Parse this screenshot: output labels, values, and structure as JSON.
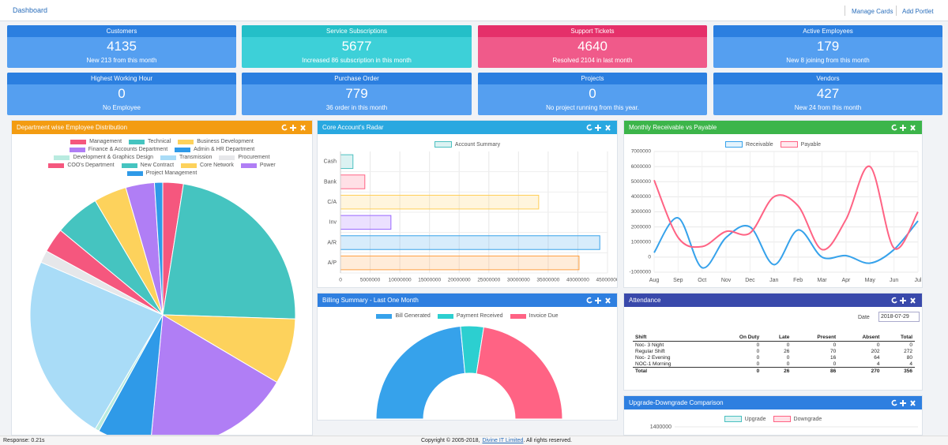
{
  "header": {
    "title": "Dashboard",
    "links": [
      "Manage Cards",
      "Add Portlet"
    ]
  },
  "cards": [
    {
      "title": "Customers",
      "value": 4135,
      "note": "New 213 from this month",
      "color": "#2b7fe0",
      "body_color": "#559ff0"
    },
    {
      "title": "Service Subscriptions",
      "value": 5677,
      "note": "Increased 86 subscription in this month",
      "color": "#24bfc8",
      "body_color": "#3dd0d8"
    },
    {
      "title": "Support Tickets",
      "value": 4640,
      "note": "Resolved 2104 in last month",
      "color": "#e5306a",
      "body_color": "#f05a8a"
    },
    {
      "title": "Active Employees",
      "value": 179,
      "note": "New 8 joining from this month",
      "color": "#2b7fe0",
      "body_color": "#559ff0"
    },
    {
      "title": "Highest Working Hour",
      "value": 0,
      "note": "No Employee",
      "color": "#2b7fe0",
      "body_color": "#559ff0"
    },
    {
      "title": "Purchase Order",
      "value": 779,
      "note": "36 order in this month",
      "color": "#2b7fe0",
      "body_color": "#559ff0"
    },
    {
      "title": "Projects",
      "value": 0,
      "note": "No project running from this year.",
      "color": "#2b7fe0",
      "body_color": "#559ff0"
    },
    {
      "title": "Vendors",
      "value": 427,
      "note": "New 24 from this month",
      "color": "#2b7fe0",
      "body_color": "#559ff0"
    }
  ],
  "panels": {
    "department": {
      "title": "Department wise Employee Distribution",
      "color": "#f39c12",
      "chart": {
        "type": "pie",
        "categories": [
          "Management",
          "Technical",
          "Business Development",
          "Finance & Accounts Department",
          "Admin & HR Department",
          "Development & Graphics Design",
          "Transmission",
          "Procurement",
          "COO's Department",
          "New Contract",
          "Core Network",
          "Power",
          "Project Management"
        ],
        "colors": [
          "#f5577e",
          "#45c4c0",
          "#fdd25c",
          "#b07ef5",
          "#2f9ae8",
          "#b9ebe0",
          "#a9dcf7",
          "#e6e7ea",
          "#f5577e",
          "#45c4c0",
          "#fdd25c",
          "#b07ef5",
          "#2f9ae8"
        ],
        "values": [
          2.5,
          23,
          8,
          18,
          6.5,
          0.5,
          23,
          1.5,
          3,
          5.5,
          4,
          3.5,
          1
        ]
      }
    },
    "radar": {
      "title": "Core Account's Radar",
      "color": "#29a8e0",
      "chart": {
        "type": "hbar",
        "categories": [
          "Cash",
          "Bank",
          "C/A",
          "Inv",
          "A/R",
          "A/P"
        ],
        "colors": [
          "#4bc0c0",
          "#ff6384",
          "#ffce56",
          "#9966ff",
          "#36a2eb",
          "#ff9f40"
        ],
        "series": [
          {
            "name": "Account Summary",
            "values": [
              2100000,
              4100000,
              33400000,
              8500000,
              43700000,
              40200000
            ]
          }
        ],
        "xlim": [
          0,
          45000000
        ],
        "xticks": [
          0,
          5000000,
          10000000,
          15000000,
          20000000,
          25000000,
          30000000,
          35000000,
          40000000,
          45000000
        ],
        "grid": true
      }
    },
    "monthly": {
      "title": "Monthly Receivable vs Payable",
      "color": "#3cb54a",
      "chart": {
        "type": "line",
        "categories": [
          "Aug",
          "Sep",
          "Oct",
          "Nov",
          "Dec",
          "Jan",
          "Feb",
          "Mar",
          "Apr",
          "May",
          "Jun",
          "Jul"
        ],
        "series": [
          {
            "name": "Receivable",
            "color": "#36a2eb",
            "values": [
              300000,
              2600000,
              -700000,
              1300000,
              2000000,
              -500000,
              1800000,
              0,
              100000,
              -400000,
              500000,
              2400000
            ]
          },
          {
            "name": "Payable",
            "color": "#ff6384",
            "values": [
              5100000,
              1300000,
              700000,
              1700000,
              1600000,
              4000000,
              3400000,
              500000,
              2500000,
              6000000,
              600000,
              3000000
            ]
          }
        ],
        "ylim": [
          -1000000,
          7000000
        ],
        "yticks": [
          -1000000,
          0,
          1000000,
          2000000,
          3000000,
          4000000,
          5000000,
          6000000,
          7000000
        ],
        "grid": true
      }
    },
    "billing": {
      "title": "Billing Summary - Last One Month",
      "color": "#2e7fe0",
      "chart": {
        "type": "half-doughnut",
        "categories": [
          "Bill Generated",
          "Payment Received",
          "Invoice Due"
        ],
        "colors": [
          "#36a2eb",
          "#2ccfd0",
          "#ff6384"
        ],
        "values": [
          47,
          8,
          45
        ]
      }
    },
    "attendance": {
      "title": "Attendance",
      "color": "#3949ab",
      "date_label": "Date",
      "date": "2018-07-29",
      "table": {
        "columns": [
          "Shift",
          "On Duty",
          "Late",
          "Present",
          "Absent",
          "Total"
        ],
        "rows": [
          [
            "Noc- 3 Night",
            0,
            0,
            0,
            0,
            0
          ],
          [
            "Regular Shift",
            0,
            26,
            70,
            202,
            272
          ],
          [
            "Noc- 2 Evening",
            0,
            0,
            16,
            64,
            80
          ],
          [
            "NOC-1 Morning",
            0,
            0,
            0,
            4,
            4
          ]
        ],
        "total": [
          "Total",
          0,
          26,
          86,
          270,
          356
        ]
      }
    },
    "upgrade": {
      "title": "Upgrade-Downgrade Comparison",
      "color": "#2e7fe0",
      "chart": {
        "type": "bar",
        "series": [
          {
            "name": "Upgrade",
            "color": "#4bc0c0"
          },
          {
            "name": "Downgrade",
            "color": "#ff6384"
          }
        ],
        "yticks": [
          1400000
        ],
        "grid": true
      }
    }
  },
  "footer": {
    "response": "Response: 0.21s",
    "copyright": "Copyright © 2005-2018,",
    "company": "Divine IT Limited",
    "rights": ". All rights reserved."
  }
}
